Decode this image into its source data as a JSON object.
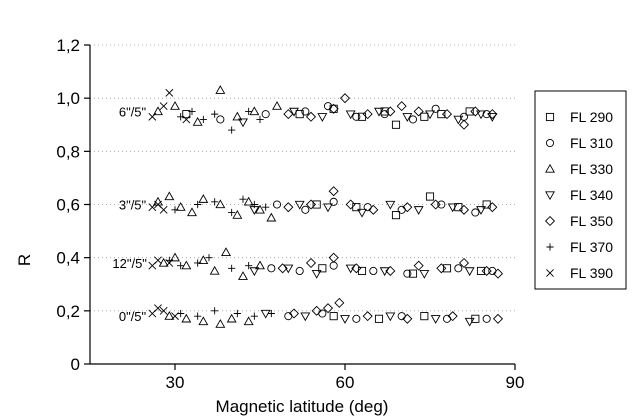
{
  "chart_data": {
    "type": "scatter",
    "xlabel": "Magnetic latitude (deg)",
    "ylabel": "R",
    "xlim": [
      15,
      90
    ],
    "ylim": [
      0,
      1.2
    ],
    "xticks": [
      30,
      60,
      90
    ],
    "yticks": [
      0,
      0.2,
      0.4,
      0.6,
      0.8,
      1.0,
      1.2
    ],
    "xtick_labels": [
      "30",
      "60",
      "90"
    ],
    "ytick_labels": [
      "0",
      "0,2",
      "0,4",
      "0,6",
      "0,8",
      "1,0",
      "1,2"
    ],
    "grid": "dotted horizontal",
    "legend_position": "right",
    "annotations": [
      {
        "text": "6\"/5\"",
        "x": 22.5,
        "y": 0.95
      },
      {
        "text": "3\"/5\"",
        "x": 22.5,
        "y": 0.6
      },
      {
        "text": "12\"/5\"",
        "x": 22.0,
        "y": 0.38
      },
      {
        "text": "0\"/5\"",
        "x": 22.5,
        "y": 0.18
      }
    ],
    "series": [
      {
        "name": "FL 290",
        "marker": "square",
        "x": [
          32,
          52,
          58,
          63,
          67,
          69,
          74,
          77,
          82
        ],
        "y": [
          0.94,
          0.94,
          0.96,
          0.93,
          0.95,
          0.9,
          0.93,
          0.94,
          0.95
        ]
      },
      {
        "name": "FL 310",
        "marker": "circle",
        "x": [
          38,
          46,
          53,
          57,
          62,
          67,
          72,
          76,
          81,
          85
        ],
        "y": [
          0.92,
          0.94,
          0.95,
          0.97,
          0.93,
          0.94,
          0.92,
          0.96,
          0.93,
          0.94
        ]
      },
      {
        "name": "FL 330",
        "marker": "triangle-up",
        "x": [
          27,
          30,
          34,
          38,
          41,
          44,
          48
        ],
        "y": [
          0.95,
          0.97,
          0.91,
          1.03,
          0.93,
          0.95,
          0.97
        ]
      },
      {
        "name": "FL 340",
        "marker": "triangle-down",
        "x": [
          42,
          51,
          56,
          61,
          66,
          71,
          75,
          80,
          84,
          86
        ],
        "y": [
          0.91,
          0.95,
          0.93,
          0.94,
          0.95,
          0.93,
          0.94,
          0.92,
          0.94,
          0.93
        ]
      },
      {
        "name": "FL 350",
        "marker": "diamond",
        "x": [
          50,
          54,
          58,
          60,
          64,
          68,
          70,
          73,
          78,
          81,
          83,
          86
        ],
        "y": [
          0.94,
          0.93,
          0.96,
          1.0,
          0.94,
          0.95,
          0.97,
          0.95,
          0.94,
          0.9,
          0.95,
          0.94
        ]
      },
      {
        "name": "FL 370",
        "marker": "plus",
        "x": [
          31,
          33,
          35,
          37,
          40,
          43,
          45
        ],
        "y": [
          0.93,
          0.95,
          0.92,
          0.94,
          0.88,
          0.95,
          0.92
        ]
      },
      {
        "name": "FL 390",
        "marker": "cross",
        "x": [
          26,
          28,
          29,
          32
        ],
        "y": [
          0.93,
          0.97,
          1.02,
          0.92
        ]
      },
      {
        "name": "FL 290",
        "marker": "square",
        "x": [
          55,
          62,
          69,
          75,
          80,
          85
        ],
        "y": [
          0.6,
          0.59,
          0.56,
          0.63,
          0.59,
          0.6
        ]
      },
      {
        "name": "FL 310",
        "marker": "circle",
        "x": [
          48,
          53,
          58,
          64,
          70,
          77,
          83
        ],
        "y": [
          0.6,
          0.58,
          0.61,
          0.59,
          0.58,
          0.6,
          0.57
        ]
      },
      {
        "name": "FL 330",
        "marker": "triangle-up",
        "x": [
          27,
          29,
          31,
          33,
          35,
          38,
          41,
          43,
          45,
          47
        ],
        "y": [
          0.61,
          0.63,
          0.59,
          0.57,
          0.62,
          0.6,
          0.56,
          0.61,
          0.58,
          0.55
        ]
      },
      {
        "name": "FL 340",
        "marker": "triangle-down",
        "x": [
          44,
          52,
          57,
          63,
          68,
          73,
          79,
          84
        ],
        "y": [
          0.58,
          0.6,
          0.59,
          0.57,
          0.6,
          0.58,
          0.59,
          0.58
        ]
      },
      {
        "name": "FL 350",
        "marker": "diamond",
        "x": [
          50,
          54,
          58,
          61,
          65,
          71,
          76,
          81,
          86
        ],
        "y": [
          0.59,
          0.6,
          0.65,
          0.6,
          0.58,
          0.59,
          0.6,
          0.58,
          0.59
        ]
      },
      {
        "name": "FL 370",
        "marker": "plus",
        "x": [
          30,
          34,
          37,
          40,
          42,
          44,
          46
        ],
        "y": [
          0.58,
          0.6,
          0.61,
          0.57,
          0.62,
          0.6,
          0.59
        ]
      },
      {
        "name": "FL 390",
        "marker": "cross",
        "x": [
          26,
          27,
          28
        ],
        "y": [
          0.59,
          0.6,
          0.58
        ]
      },
      {
        "name": "FL 290",
        "marker": "square",
        "x": [
          56,
          63,
          72,
          78,
          84
        ],
        "y": [
          0.36,
          0.35,
          0.34,
          0.36,
          0.35
        ]
      },
      {
        "name": "FL 310",
        "marker": "circle",
        "x": [
          47,
          52,
          58,
          65,
          71,
          80,
          86
        ],
        "y": [
          0.36,
          0.35,
          0.37,
          0.35,
          0.34,
          0.36,
          0.35
        ]
      },
      {
        "name": "FL 330",
        "marker": "triangle-up",
        "x": [
          28,
          30,
          32,
          35,
          37,
          39,
          42,
          45
        ],
        "y": [
          0.38,
          0.4,
          0.37,
          0.39,
          0.35,
          0.42,
          0.33,
          0.37
        ]
      },
      {
        "name": "FL 340",
        "marker": "triangle-down",
        "x": [
          44,
          50,
          55,
          61,
          67,
          74,
          82
        ],
        "y": [
          0.35,
          0.36,
          0.34,
          0.36,
          0.35,
          0.34,
          0.35
        ]
      },
      {
        "name": "FL 350",
        "marker": "diamond",
        "x": [
          49,
          54,
          58,
          62,
          68,
          73,
          77,
          81,
          85,
          87
        ],
        "y": [
          0.36,
          0.38,
          0.4,
          0.36,
          0.35,
          0.37,
          0.36,
          0.38,
          0.35,
          0.34
        ]
      },
      {
        "name": "FL 370",
        "marker": "plus",
        "x": [
          29,
          31,
          34,
          36,
          40,
          43
        ],
        "y": [
          0.39,
          0.37,
          0.38,
          0.4,
          0.36,
          0.37
        ]
      },
      {
        "name": "FL 390",
        "marker": "cross",
        "x": [
          26,
          27,
          29
        ],
        "y": [
          0.37,
          0.39,
          0.38
        ]
      },
      {
        "name": "FL 290",
        "marker": "square",
        "x": [
          58,
          66,
          74,
          83
        ],
        "y": [
          0.18,
          0.17,
          0.18,
          0.17
        ]
      },
      {
        "name": "FL 310",
        "marker": "circle",
        "x": [
          50,
          56,
          62,
          70,
          78,
          85
        ],
        "y": [
          0.18,
          0.19,
          0.17,
          0.18,
          0.17,
          0.17
        ]
      },
      {
        "name": "FL 330",
        "marker": "triangle-up",
        "x": [
          29,
          32,
          35,
          38,
          40,
          43
        ],
        "y": [
          0.18,
          0.17,
          0.16,
          0.15,
          0.17,
          0.16
        ]
      },
      {
        "name": "FL 340",
        "marker": "triangle-down",
        "x": [
          46,
          53,
          60,
          68,
          76,
          82
        ],
        "y": [
          0.19,
          0.18,
          0.17,
          0.18,
          0.17,
          0.16
        ]
      },
      {
        "name": "FL 350",
        "marker": "diamond",
        "x": [
          51,
          55,
          57,
          59,
          64,
          71,
          79,
          87
        ],
        "y": [
          0.19,
          0.2,
          0.21,
          0.23,
          0.18,
          0.17,
          0.18,
          0.17
        ]
      },
      {
        "name": "FL 370",
        "marker": "plus",
        "x": [
          31,
          34,
          37,
          41,
          44,
          47
        ],
        "y": [
          0.19,
          0.18,
          0.2,
          0.19,
          0.18,
          0.19
        ]
      },
      {
        "name": "FL 390",
        "marker": "cross",
        "x": [
          26,
          27,
          28,
          30
        ],
        "y": [
          0.19,
          0.21,
          0.2,
          0.18
        ]
      }
    ]
  },
  "legend": {
    "entries": [
      {
        "label": "FL 290",
        "marker": "square"
      },
      {
        "label": "FL 310",
        "marker": "circle"
      },
      {
        "label": "FL 330",
        "marker": "triangle-up"
      },
      {
        "label": "FL 340",
        "marker": "triangle-down"
      },
      {
        "label": "FL 350",
        "marker": "diamond"
      },
      {
        "label": "FL 370",
        "marker": "plus"
      },
      {
        "label": "FL 390",
        "marker": "cross"
      }
    ]
  }
}
